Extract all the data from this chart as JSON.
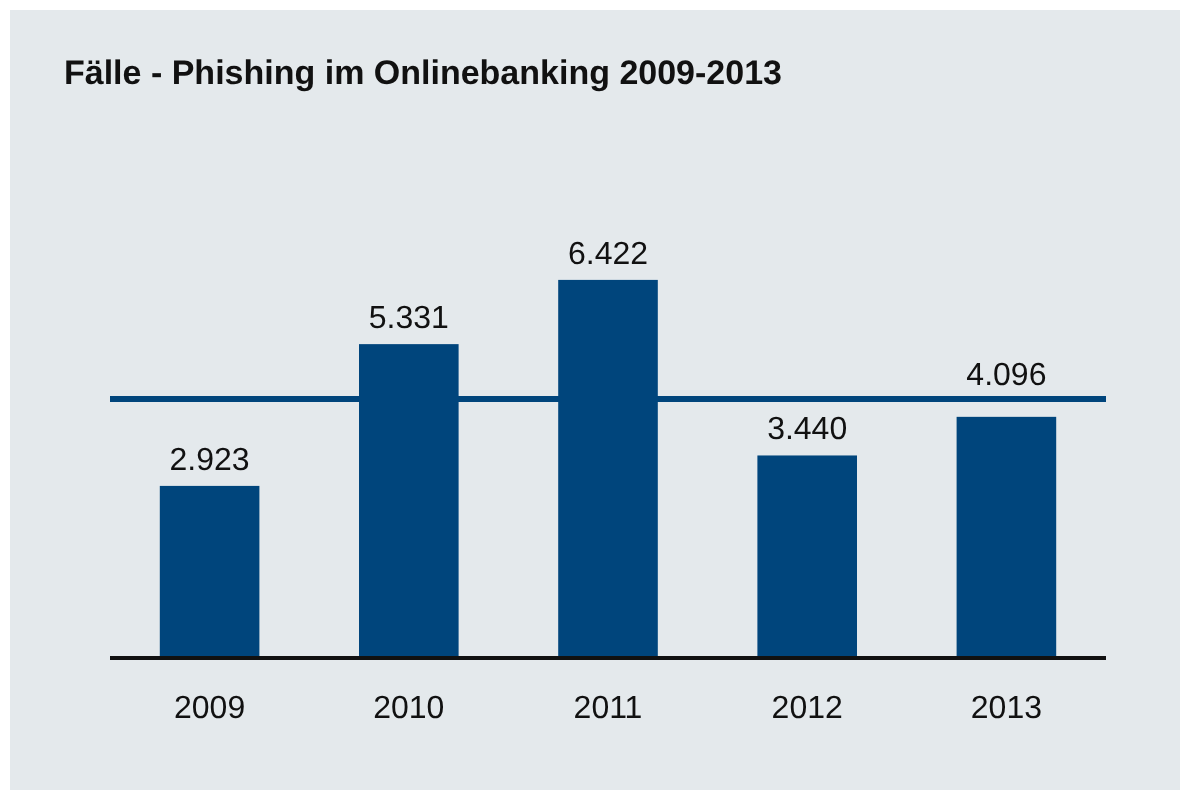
{
  "chart_data": {
    "type": "bar",
    "title": "Fälle - Phishing im Onlinebanking 2009-2013",
    "categories": [
      "2009",
      "2010",
      "2011",
      "2012",
      "2013"
    ],
    "values": [
      2923,
      5331,
      6422,
      3440,
      4096
    ],
    "value_labels": [
      "2.923",
      "5.331",
      "6.422",
      "3.440",
      "4.096"
    ],
    "color": "#00457c",
    "ref_lines": [
      {
        "axis": "y",
        "value": 4400,
        "color": "#00457c"
      }
    ]
  }
}
